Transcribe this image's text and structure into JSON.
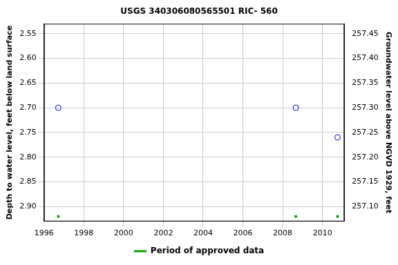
{
  "chart_data": {
    "type": "scatter",
    "title": "USGS 340306080565501 RIC- 560",
    "x_label": "",
    "y_label": "Depth to water level, feet below land surface",
    "y2_label": "Groundwater level above NGVD 1929, feet",
    "x": [
      1996.72,
      2008.66,
      2010.76
    ],
    "series": [
      {
        "color": "#0000cc",
        "marker": "circle",
        "values": [
          2.7,
          2.7,
          2.76
        ]
      },
      {
        "name": "Period of approved data",
        "color": "#00a000",
        "marker": "rect",
        "values": [
          2.92,
          2.92,
          2.92
        ]
      }
    ],
    "xlim": [
      1996,
      2011.1
    ],
    "xticks": [
      1996,
      1998,
      2000,
      2002,
      2004,
      2006,
      2008,
      2010
    ],
    "ylim": [
      2.53,
      2.93
    ],
    "yticks": [
      2.55,
      {
        "value": 2.6,
        "label": "2.60"
      },
      2.65,
      {
        "value": 2.7,
        "label": "2.70"
      },
      2.75,
      {
        "value": 2.8,
        "label": "2.80"
      },
      2.85,
      {
        "value": 2.9,
        "label": "2.90"
      }
    ],
    "y2lim": [
      257.07,
      257.47
    ],
    "y2ticks": [
      {
        "value": 257.1,
        "label": "257.10"
      },
      257.15,
      {
        "value": 257.2,
        "label": "257.20"
      },
      257.25,
      {
        "value": 257.3,
        "label": "257.30"
      },
      257.35,
      {
        "value": 257.4,
        "label": "257.40"
      },
      257.45
    ],
    "grid": true,
    "legend": "bottom"
  }
}
